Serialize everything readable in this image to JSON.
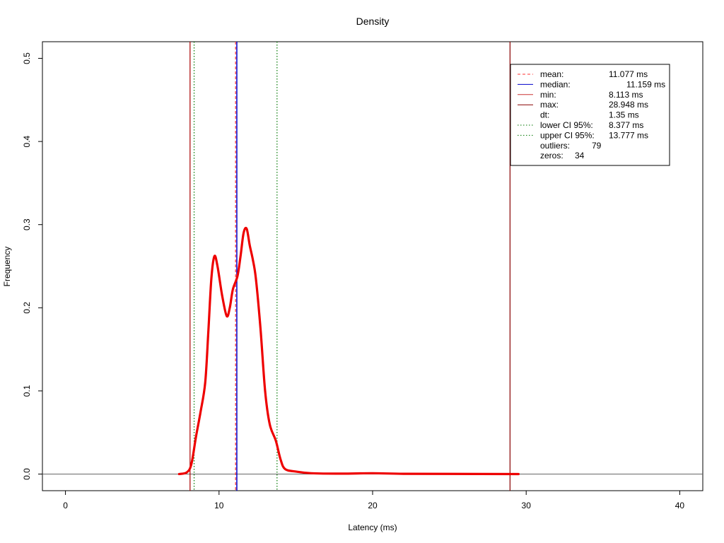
{
  "chart_data": {
    "type": "line",
    "title": "Density",
    "xlabel": "Latency (ms)",
    "ylabel": "Frequency",
    "xlim": [
      -1.5,
      41.5
    ],
    "ylim": [
      -0.02,
      0.52
    ],
    "xticks": [
      0,
      10,
      20,
      30,
      40
    ],
    "yticks": [
      0.0,
      0.1,
      0.2,
      0.3,
      0.4,
      0.5
    ],
    "grid": false,
    "legend_position": "top-right",
    "series": [
      {
        "color": "#ee0000",
        "points": [
          [
            7.4,
            0.0
          ],
          [
            7.9,
            0.002
          ],
          [
            8.2,
            0.012
          ],
          [
            8.5,
            0.045
          ],
          [
            8.8,
            0.075
          ],
          [
            9.1,
            0.11
          ],
          [
            9.3,
            0.17
          ],
          [
            9.5,
            0.235
          ],
          [
            9.7,
            0.262
          ],
          [
            9.9,
            0.25
          ],
          [
            10.2,
            0.215
          ],
          [
            10.5,
            0.19
          ],
          [
            10.7,
            0.2
          ],
          [
            10.9,
            0.222
          ],
          [
            11.2,
            0.238
          ],
          [
            11.4,
            0.262
          ],
          [
            11.6,
            0.29
          ],
          [
            11.8,
            0.295
          ],
          [
            12.0,
            0.275
          ],
          [
            12.2,
            0.258
          ],
          [
            12.4,
            0.235
          ],
          [
            12.7,
            0.175
          ],
          [
            13.0,
            0.1
          ],
          [
            13.3,
            0.06
          ],
          [
            13.7,
            0.04
          ],
          [
            14.0,
            0.018
          ],
          [
            14.3,
            0.006
          ],
          [
            15.0,
            0.003
          ],
          [
            16.0,
            0.001
          ],
          [
            18.0,
            0.0005
          ],
          [
            20.0,
            0.001
          ],
          [
            22.0,
            0.0003
          ],
          [
            25.0,
            0.0002
          ],
          [
            29.5,
            0.0
          ]
        ]
      }
    ],
    "reference_lines": [
      {
        "key": "mean",
        "x": 11.077,
        "color": "#ff3333",
        "style": "dashed"
      },
      {
        "key": "median",
        "x": 11.159,
        "color": "#0000cc",
        "style": "solid"
      },
      {
        "key": "min",
        "x": 8.113,
        "color": "#aa0000",
        "style": "solid"
      },
      {
        "key": "max",
        "x": 28.948,
        "color": "#880000",
        "style": "solid"
      },
      {
        "key": "lower_ci",
        "x": 8.377,
        "color": "#007700",
        "style": "dotted"
      },
      {
        "key": "upper_ci",
        "x": 13.777,
        "color": "#007700",
        "style": "dotted"
      }
    ],
    "legend": [
      {
        "label": "mean:",
        "value": "11.077 ms",
        "line": "dashed",
        "color": "#ff3333"
      },
      {
        "label": "median:",
        "value": "11.159 ms",
        "line": "solid",
        "color": "#0000cc"
      },
      {
        "label": "min:",
        "value": "8.113 ms",
        "line": "solid",
        "color": "#cc3333"
      },
      {
        "label": "max:",
        "value": "28.948 ms",
        "line": "solid",
        "color": "#880000"
      },
      {
        "label": "dt:",
        "value": "1.35 ms",
        "line": "none",
        "color": ""
      },
      {
        "label": "lower CI 95%:",
        "value": "8.377 ms",
        "line": "dotted",
        "color": "#007700"
      },
      {
        "label": "upper CI 95%:",
        "value": "13.777 ms",
        "line": "dotted",
        "color": "#007700"
      },
      {
        "label": "outliers:",
        "value": "79",
        "line": "none",
        "color": ""
      },
      {
        "label": "zeros:",
        "value": "34",
        "line": "none",
        "color": ""
      }
    ]
  }
}
